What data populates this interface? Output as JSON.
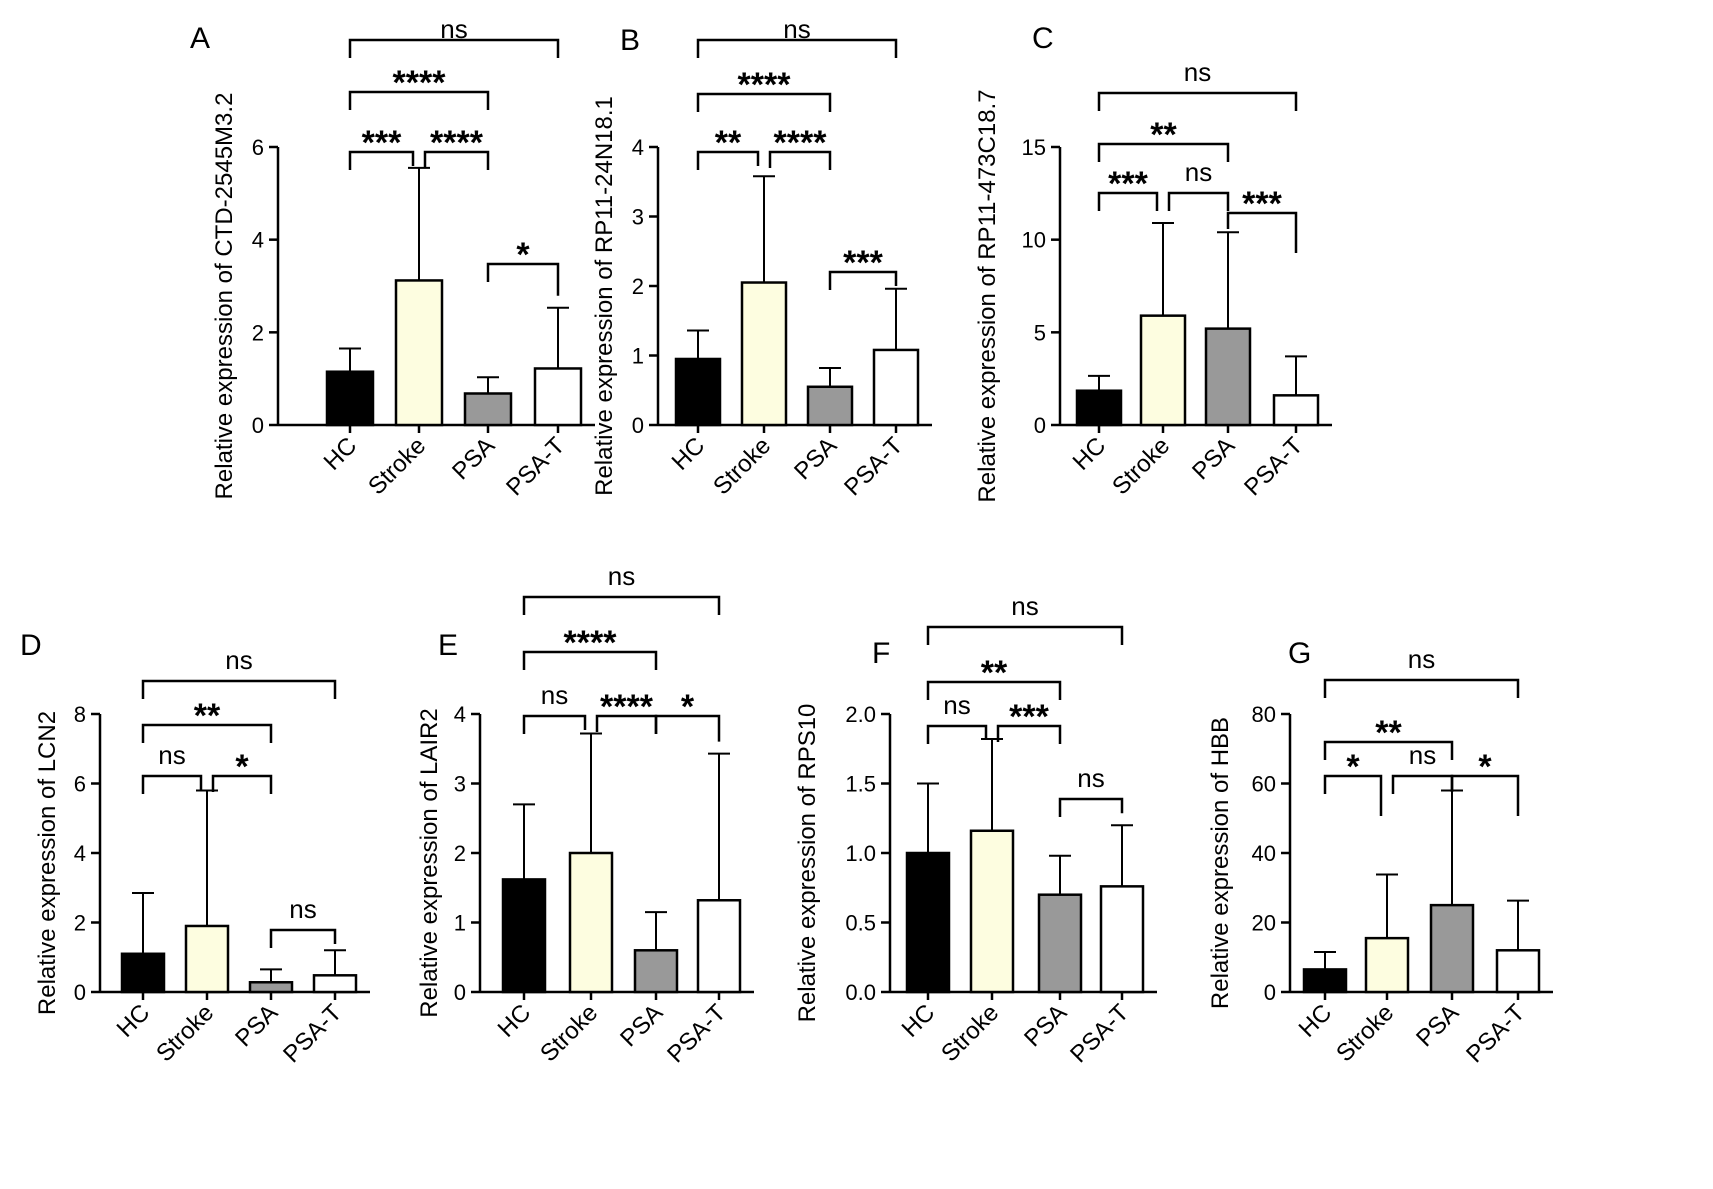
{
  "figure": {
    "bar_colors": {
      "HC": "#000000",
      "Stroke": "#fdfde0",
      "PSA": "#999999",
      "PSA-T": "#ffffff"
    }
  },
  "chart_data": [
    {
      "panel": "A",
      "type": "bar",
      "ylabel": "Relative expression of CTD-2545M3.2",
      "categories": [
        "HC",
        "Stroke",
        "PSA",
        "PSA-T"
      ],
      "values": [
        1.15,
        3.12,
        0.68,
        1.22
      ],
      "error_upper": [
        1.65,
        5.55,
        1.03,
        2.53
      ],
      "ylim": [
        0,
        6
      ],
      "yticks": [
        0,
        2,
        4,
        6
      ],
      "tick_labels": [
        "0",
        "2",
        "4",
        "6"
      ],
      "comparisons": [
        {
          "from": 0,
          "to": 3,
          "label": "ns"
        },
        {
          "from": 0,
          "to": 2,
          "label": "****"
        },
        {
          "from": 0,
          "to": 1,
          "label": "***"
        },
        {
          "from": 1,
          "to": 2,
          "label": "****"
        },
        {
          "from": 2,
          "to": 3,
          "label": "*"
        }
      ]
    },
    {
      "panel": "B",
      "type": "bar",
      "ylabel": "Relative expression of RP11-24N18.1",
      "categories": [
        "HC",
        "Stroke",
        "PSA",
        "PSA-T"
      ],
      "values": [
        0.95,
        2.05,
        0.55,
        1.08
      ],
      "error_upper": [
        1.36,
        3.58,
        0.82,
        1.96
      ],
      "ylim": [
        0,
        4
      ],
      "yticks": [
        0,
        1,
        2,
        3,
        4
      ],
      "tick_labels": [
        "0",
        "1",
        "2",
        "3",
        "4"
      ],
      "comparisons": [
        {
          "from": 0,
          "to": 3,
          "label": "ns"
        },
        {
          "from": 0,
          "to": 2,
          "label": "****"
        },
        {
          "from": 0,
          "to": 1,
          "label": "**"
        },
        {
          "from": 1,
          "to": 2,
          "label": "****"
        },
        {
          "from": 2,
          "to": 3,
          "label": "***"
        }
      ]
    },
    {
      "panel": "C",
      "type": "bar",
      "ylabel": "Relative expression of RP11-473C18.7",
      "categories": [
        "HC",
        "Stroke",
        "PSA",
        "PSA-T"
      ],
      "values": [
        1.85,
        5.9,
        5.2,
        1.6
      ],
      "error_upper": [
        2.65,
        10.9,
        10.4,
        3.7
      ],
      "ylim": [
        0,
        15
      ],
      "yticks": [
        0,
        5,
        10,
        15
      ],
      "tick_labels": [
        "0",
        "5",
        "10",
        "15"
      ],
      "comparisons": [
        {
          "from": 0,
          "to": 3,
          "label": "ns"
        },
        {
          "from": 0,
          "to": 2,
          "label": "**"
        },
        {
          "from": 0,
          "to": 1,
          "label": "***"
        },
        {
          "from": 1,
          "to": 2,
          "label": "ns"
        },
        {
          "from": 2,
          "to": 3,
          "label": "***"
        }
      ]
    },
    {
      "panel": "D",
      "type": "bar",
      "ylabel": "Relative expression of LCN2",
      "categories": [
        "HC",
        "Stroke",
        "PSA",
        "PSA-T"
      ],
      "values": [
        1.1,
        1.9,
        0.28,
        0.48
      ],
      "error_upper": [
        2.85,
        5.8,
        0.65,
        1.2
      ],
      "ylim": [
        0,
        8
      ],
      "yticks": [
        0,
        2,
        4,
        6,
        8
      ],
      "tick_labels": [
        "0",
        "2",
        "4",
        "6",
        "8"
      ],
      "comparisons": [
        {
          "from": 0,
          "to": 3,
          "label": "ns"
        },
        {
          "from": 0,
          "to": 2,
          "label": "**"
        },
        {
          "from": 0,
          "to": 1,
          "label": "ns"
        },
        {
          "from": 1,
          "to": 2,
          "label": "*"
        },
        {
          "from": 2,
          "to": 3,
          "label": "ns"
        }
      ]
    },
    {
      "panel": "E",
      "type": "bar",
      "ylabel": "Relative expression of LAIR2",
      "categories": [
        "HC",
        "Stroke",
        "PSA",
        "PSA-T"
      ],
      "values": [
        1.62,
        2.0,
        0.6,
        1.32
      ],
      "error_upper": [
        2.7,
        3.72,
        1.15,
        3.43
      ],
      "ylim": [
        0,
        4
      ],
      "yticks": [
        0,
        1,
        2,
        3,
        4
      ],
      "tick_labels": [
        "0",
        "1",
        "2",
        "3",
        "4"
      ],
      "comparisons": [
        {
          "from": 0,
          "to": 3,
          "label": "ns"
        },
        {
          "from": 0,
          "to": 2,
          "label": "****"
        },
        {
          "from": 0,
          "to": 1,
          "label": "ns"
        },
        {
          "from": 1,
          "to": 2,
          "label": "****"
        },
        {
          "from": 2,
          "to": 3,
          "label": "*"
        }
      ]
    },
    {
      "panel": "F",
      "type": "bar",
      "ylabel": "Relative expression of RPS10",
      "categories": [
        "HC",
        "Stroke",
        "PSA",
        "PSA-T"
      ],
      "values": [
        1.0,
        1.16,
        0.7,
        0.76
      ],
      "error_upper": [
        1.5,
        1.82,
        0.98,
        1.2
      ],
      "ylim": [
        0,
        2
      ],
      "yticks": [
        0,
        0.5,
        1.0,
        1.5,
        2.0
      ],
      "tick_labels": [
        "0.0",
        "0.5",
        "1.0",
        "1.5",
        "2.0"
      ],
      "comparisons": [
        {
          "from": 0,
          "to": 3,
          "label": "ns"
        },
        {
          "from": 0,
          "to": 2,
          "label": "**"
        },
        {
          "from": 0,
          "to": 1,
          "label": "ns"
        },
        {
          "from": 1,
          "to": 2,
          "label": "***"
        },
        {
          "from": 2,
          "to": 3,
          "label": "ns"
        }
      ]
    },
    {
      "panel": "G",
      "type": "bar",
      "ylabel": "Relative expression of HBB",
      "categories": [
        "HC",
        "Stroke",
        "PSA",
        "PSA-T"
      ],
      "values": [
        6.5,
        15.5,
        25.0,
        12.0
      ],
      "error_upper": [
        11.5,
        33.8,
        58.0,
        26.3
      ],
      "ylim": [
        0,
        80
      ],
      "yticks": [
        0,
        20,
        40,
        60,
        80
      ],
      "tick_labels": [
        "0",
        "20",
        "40",
        "60",
        "80"
      ],
      "comparisons": [
        {
          "from": 0,
          "to": 3,
          "label": "ns"
        },
        {
          "from": 0,
          "to": 2,
          "label": "**"
        },
        {
          "from": 0,
          "to": 1,
          "label": "*"
        },
        {
          "from": 1,
          "to": 2,
          "label": "ns"
        },
        {
          "from": 2,
          "to": 3,
          "label": "*"
        }
      ]
    }
  ]
}
